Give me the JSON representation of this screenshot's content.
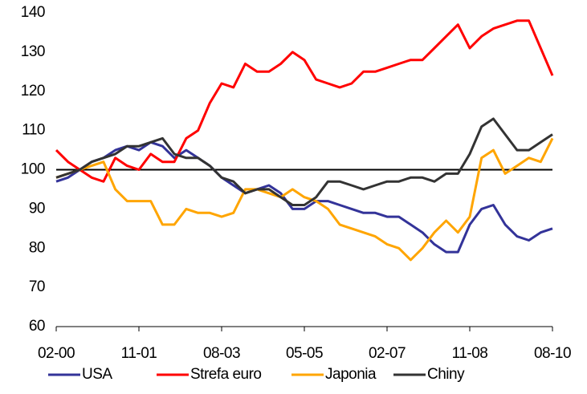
{
  "chart_data": {
    "type": "line",
    "categories": [
      "02-00",
      null,
      null,
      null,
      null,
      null,
      null,
      "11-01",
      null,
      null,
      null,
      null,
      null,
      null,
      "08-03",
      null,
      null,
      null,
      null,
      null,
      null,
      "05-05",
      null,
      null,
      null,
      null,
      null,
      null,
      "02-07",
      null,
      null,
      null,
      null,
      null,
      null,
      "11-08",
      null,
      null,
      null,
      null,
      null,
      null,
      "08-10"
    ],
    "series": [
      {
        "name": "USA",
        "color": "#333399",
        "values": [
          97,
          98,
          100,
          102,
          103,
          105,
          106,
          105,
          107,
          106,
          103,
          105,
          103,
          101,
          98,
          96,
          94,
          95,
          96,
          94,
          90,
          90,
          92,
          92,
          91,
          90,
          89,
          89,
          88,
          88,
          86,
          84,
          81,
          79,
          79,
          86,
          90,
          91,
          86,
          83,
          82,
          84,
          85
        ]
      },
      {
        "name": "Strefa euro",
        "color": "#ff0000",
        "values": [
          105,
          102,
          100,
          98,
          97,
          103,
          101,
          100,
          104,
          102,
          102,
          108,
          110,
          117,
          122,
          121,
          127,
          125,
          125,
          127,
          130,
          128,
          123,
          122,
          121,
          122,
          125,
          125,
          126,
          127,
          128,
          128,
          131,
          134,
          137,
          131,
          134,
          136,
          137,
          138,
          138,
          131,
          124
        ]
      },
      {
        "name": "Japonia",
        "color": "#ffa500",
        "values": [
          98,
          99,
          100,
          101,
          102,
          95,
          92,
          92,
          92,
          86,
          86,
          90,
          89,
          89,
          88,
          89,
          95,
          95,
          94,
          93,
          95,
          93,
          92,
          90,
          86,
          85,
          84,
          83,
          81,
          80,
          77,
          80,
          84,
          87,
          84,
          88,
          103,
          105,
          99,
          101,
          103,
          102,
          108
        ]
      },
      {
        "name": "Chiny",
        "color": "#333333",
        "values": [
          98,
          99,
          100,
          102,
          103,
          104,
          106,
          106,
          107,
          108,
          104,
          103,
          103,
          101,
          98,
          97,
          94,
          95,
          95,
          93,
          91,
          91,
          93,
          97,
          97,
          96,
          95,
          96,
          97,
          97,
          98,
          98,
          97,
          99,
          99,
          104,
          111,
          113,
          109,
          105,
          105,
          107,
          109
        ]
      }
    ],
    "hline": 100,
    "ylim": [
      60,
      140
    ],
    "yticks": [
      60,
      70,
      80,
      90,
      100,
      110,
      120,
      130,
      140
    ],
    "legend": "bottom"
  }
}
